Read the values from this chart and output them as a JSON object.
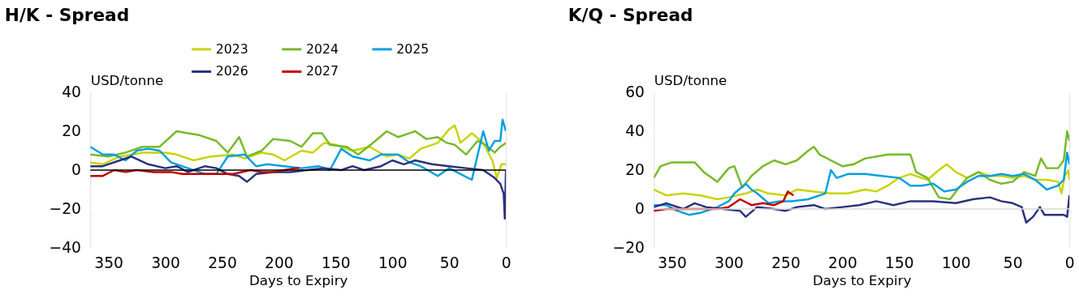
{
  "chart_data": [
    {
      "type": "line",
      "title": "H/K - Spread",
      "xlabel": "Days to Expiry",
      "ylabel": "USD/tonne",
      "xlim": [
        366,
        0
      ],
      "xticks": [
        350,
        300,
        250,
        200,
        150,
        100,
        50,
        0
      ],
      "ylim": [
        -40,
        40
      ],
      "yticks": [
        -40,
        -20,
        0,
        20,
        40
      ],
      "grid": "y",
      "legend": "top",
      "marker": "none",
      "line_style": "solid",
      "ref_lines": [
        {
          "axis": "y",
          "value": 0,
          "color": "#000000"
        }
      ],
      "series": [
        {
          "name": "2023",
          "color": "#c8d400",
          "x": [
            366,
            355,
            340,
            320,
            300,
            290,
            275,
            260,
            240,
            230,
            215,
            205,
            195,
            180,
            170,
            160,
            150,
            135,
            120,
            105,
            95,
            85,
            75,
            60,
            50,
            45,
            40,
            30,
            20,
            12,
            8,
            4,
            0
          ],
          "values": [
            4,
            3,
            7,
            9,
            9,
            8,
            5,
            7,
            8,
            6,
            9,
            8,
            5,
            10,
            9,
            14,
            13,
            10,
            12,
            7,
            8,
            6,
            11,
            14,
            21,
            23,
            14,
            19,
            14,
            5,
            -4,
            3,
            3
          ]
        },
        {
          "name": "2024",
          "color": "#78b928",
          "x": [
            366,
            350,
            335,
            320,
            305,
            290,
            280,
            270,
            255,
            245,
            235,
            228,
            215,
            205,
            190,
            180,
            170,
            162,
            155,
            140,
            130,
            115,
            105,
            95,
            80,
            70,
            60,
            52,
            45,
            35,
            25,
            18,
            10,
            5,
            0
          ],
          "values": [
            8,
            7,
            9,
            12,
            12,
            20,
            19,
            18,
            15,
            9,
            17,
            7,
            10,
            16,
            15,
            12,
            19,
            19,
            13,
            12,
            8,
            15,
            20,
            17,
            20,
            16,
            17,
            14,
            13,
            8,
            15,
            13,
            9,
            12,
            14
          ]
        },
        {
          "name": "2025",
          "color": "#00a0e0",
          "x": [
            366,
            355,
            345,
            335,
            325,
            315,
            305,
            295,
            280,
            265,
            255,
            245,
            230,
            220,
            210,
            195,
            180,
            165,
            155,
            145,
            135,
            120,
            110,
            95,
            85,
            75,
            60,
            50,
            40,
            30,
            20,
            15,
            10,
            5,
            3,
            0
          ],
          "values": [
            12,
            8,
            8,
            5,
            10,
            11,
            10,
            4,
            1,
            -2,
            -2,
            7,
            8,
            2,
            3,
            2,
            1,
            2,
            0,
            11,
            7,
            5,
            8,
            8,
            4,
            2,
            -3,
            1,
            -2,
            -5,
            20,
            10,
            15,
            15,
            26,
            20
          ]
        },
        {
          "name": "2026",
          "color": "#2a317d",
          "x": [
            366,
            355,
            340,
            330,
            315,
            300,
            290,
            280,
            265,
            255,
            245,
            235,
            228,
            220,
            205,
            190,
            175,
            160,
            145,
            135,
            125,
            110,
            100,
            90,
            80,
            65,
            50,
            35,
            20,
            10,
            5,
            2,
            1,
            0
          ],
          "values": [
            2,
            2,
            5,
            7,
            3,
            1,
            2,
            -1,
            2,
            1,
            -2,
            -3,
            -6,
            -2,
            -1,
            -1,
            0,
            1,
            0,
            2,
            0,
            2,
            5,
            3,
            5,
            3,
            2,
            1,
            0,
            -4,
            -7,
            -12,
            -25,
            0
          ]
        },
        {
          "name": "2027",
          "color": "#c00000",
          "x": [
            366,
            355,
            345,
            335,
            325,
            310,
            295,
            285,
            270,
            255,
            240,
            225,
            215,
            205,
            195,
            185,
            182
          ],
          "values": [
            -3,
            -3,
            0,
            -1,
            0,
            -1,
            -1,
            -2,
            -2,
            -2,
            -2,
            0,
            -1,
            -1,
            0,
            1,
            1
          ]
        }
      ]
    },
    {
      "type": "line",
      "title": "K/Q - Spread",
      "xlabel": "Days to Expiry",
      "ylabel": "USD/tonne",
      "xlim": [
        366,
        0
      ],
      "xticks": [
        350,
        300,
        250,
        200,
        150,
        100,
        50,
        0
      ],
      "ylim": [
        -20,
        60
      ],
      "yticks": [
        -20,
        0,
        20,
        40,
        60
      ],
      "grid": "y",
      "legend": "top",
      "marker": "none",
      "line_style": "solid",
      "ref_lines": [
        {
          "axis": "y",
          "value": 0,
          "color": "#d9d9d9"
        }
      ],
      "series": [
        {
          "name": "2023",
          "color": "#c8d400",
          "x": [
            366,
            355,
            340,
            325,
            310,
            300,
            285,
            275,
            265,
            250,
            240,
            225,
            210,
            195,
            180,
            170,
            160,
            150,
            140,
            125,
            115,
            108,
            100,
            90,
            80,
            70,
            60,
            50,
            40,
            30,
            20,
            10,
            7,
            4,
            1,
            0
          ],
          "values": [
            10,
            7,
            8,
            7,
            5,
            6,
            8,
            10,
            8,
            7,
            10,
            9,
            8,
            8,
            10,
            9,
            12,
            16,
            18,
            15,
            20,
            23,
            19,
            16,
            19,
            17,
            17,
            16,
            17,
            15,
            15,
            14,
            8,
            17,
            20,
            15
          ]
        },
        {
          "name": "2024",
          "color": "#78b928",
          "x": [
            366,
            360,
            350,
            340,
            330,
            322,
            310,
            300,
            295,
            288,
            280,
            270,
            260,
            250,
            240,
            230,
            225,
            220,
            210,
            200,
            190,
            180,
            170,
            160,
            150,
            140,
            135,
            125,
            115,
            105,
            100,
            90,
            80,
            70,
            60,
            50,
            40,
            30,
            25,
            20,
            10,
            5,
            2,
            0
          ],
          "values": [
            16,
            22,
            24,
            24,
            24,
            19,
            14,
            21,
            22,
            11,
            17,
            22,
            25,
            23,
            25,
            30,
            32,
            28,
            25,
            22,
            23,
            26,
            27,
            28,
            28,
            28,
            19,
            16,
            6,
            5,
            9,
            16,
            19,
            15,
            13,
            14,
            19,
            17,
            26,
            21,
            21,
            25,
            40,
            35
          ]
        },
        {
          "name": "2025",
          "color": "#00a0e0",
          "x": [
            366,
            355,
            345,
            335,
            325,
            310,
            300,
            295,
            285,
            280,
            275,
            265,
            255,
            245,
            230,
            215,
            210,
            205,
            195,
            180,
            165,
            150,
            140,
            130,
            120,
            110,
            100,
            90,
            80,
            70,
            60,
            50,
            40,
            30,
            20,
            10,
            5,
            2,
            0
          ],
          "values": [
            2,
            2,
            -1,
            -3,
            -2,
            1,
            4,
            8,
            13,
            10,
            8,
            3,
            4,
            4,
            5,
            8,
            20,
            16,
            18,
            18,
            17,
            16,
            12,
            12,
            13,
            9,
            10,
            14,
            17,
            17,
            18,
            17,
            18,
            15,
            10,
            12,
            15,
            29,
            23
          ]
        },
        {
          "name": "2026",
          "color": "#2a317d",
          "x": [
            366,
            355,
            340,
            330,
            320,
            305,
            290,
            285,
            275,
            260,
            250,
            240,
            225,
            215,
            200,
            185,
            170,
            155,
            140,
            120,
            100,
            85,
            70,
            60,
            50,
            42,
            38,
            32,
            26,
            22,
            15,
            5,
            2,
            0
          ],
          "values": [
            1,
            3,
            0,
            3,
            1,
            0,
            -1,
            -4,
            1,
            0,
            -1,
            1,
            2,
            0,
            1,
            2,
            4,
            2,
            4,
            4,
            3,
            5,
            6,
            4,
            3,
            1,
            -7,
            -4,
            1,
            -3,
            -3,
            -3,
            -4,
            7
          ]
        },
        {
          "name": "2027",
          "color": "#c00000",
          "x": [
            366,
            355,
            340,
            325,
            310,
            300,
            290,
            280,
            270,
            260,
            252,
            248,
            243
          ],
          "values": [
            -1,
            0,
            0,
            0,
            0,
            1,
            5,
            2,
            3,
            2,
            4,
            9,
            7
          ]
        }
      ]
    }
  ]
}
